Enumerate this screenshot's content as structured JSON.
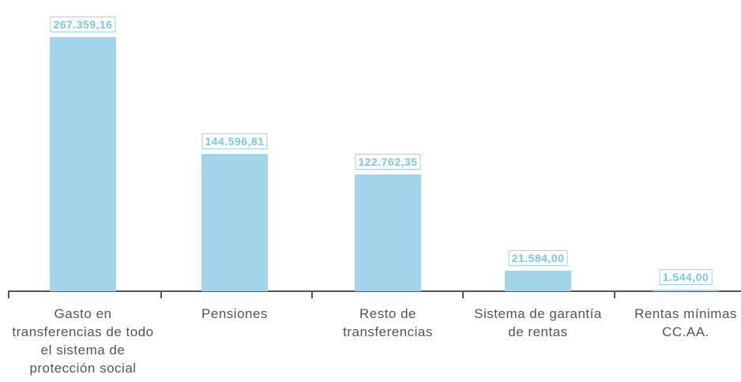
{
  "chart_data": {
    "type": "bar",
    "categories": [
      "Gasto en transferencias de todo el sistema de protección social",
      "Pensiones",
      "Resto de transferencias",
      "Sistema de garantía de rentas",
      "Rentas mínimas CC.AA."
    ],
    "values": [
      267359.16,
      144596.81,
      122762.35,
      21584.0,
      1544.0
    ],
    "value_labels": [
      "267.359,16",
      "144.596,81",
      "122.762,35",
      "21.584,00",
      "1.544,00"
    ],
    "color": "#a3d5ea"
  }
}
